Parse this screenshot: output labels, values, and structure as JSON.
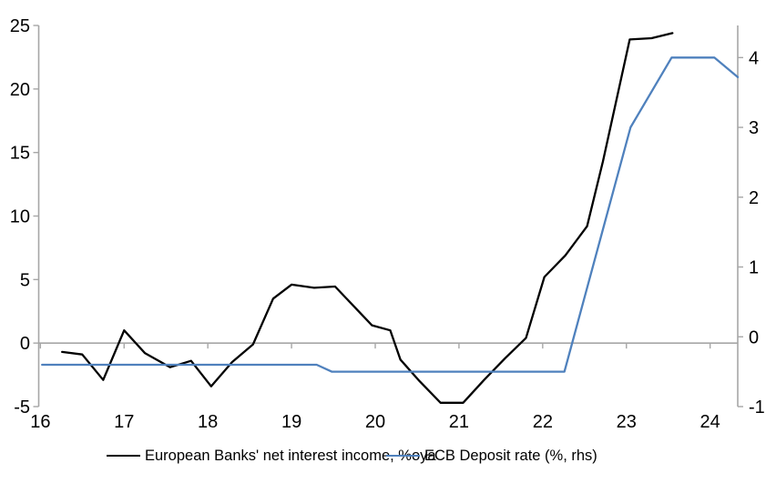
{
  "page": {
    "background": "#ffffff"
  },
  "colors": {
    "nii_line": "#000000",
    "ecb_line": "#4F81BD",
    "axis": "#A6A6A6",
    "zero_gridline": "#A6A6A6",
    "tick_text": "#000000"
  },
  "chart_data": {
    "type": "line",
    "title": "",
    "grid": "zero-line-only",
    "legend_position": "bottom",
    "x_axis": {
      "range": [
        15.98,
        24.33
      ],
      "tick_years": [
        16,
        17,
        18,
        19,
        20,
        21,
        22,
        23,
        24
      ],
      "tick_labels": [
        "16",
        "17",
        "18",
        "19",
        "20",
        "21",
        "22",
        "23",
        "24"
      ]
    },
    "left_axis": {
      "range": [
        -5,
        25
      ],
      "ticks": [
        -5,
        0,
        5,
        10,
        15,
        20,
        25
      ],
      "tick_labels": [
        "-5",
        "0",
        "5",
        "10",
        "15",
        "20",
        "25"
      ]
    },
    "right_axis": {
      "range": [
        -1,
        4.46
      ],
      "ticks": [
        -1,
        0,
        1,
        2,
        3,
        4
      ],
      "tick_labels": [
        "-1",
        "0",
        "1",
        "2",
        "3",
        "4"
      ]
    },
    "series": [
      {
        "name": "European Banks' net interest income, %oya",
        "axis": "left",
        "color": "#000000",
        "points": [
          [
            16.26,
            -0.7
          ],
          [
            16.5,
            -0.9
          ],
          [
            16.75,
            -2.9
          ],
          [
            17.0,
            1.0
          ],
          [
            17.25,
            -0.8
          ],
          [
            17.55,
            -1.9
          ],
          [
            17.8,
            -1.4
          ],
          [
            18.04,
            -3.4
          ],
          [
            18.29,
            -1.5
          ],
          [
            18.54,
            -0.1
          ],
          [
            18.78,
            3.5
          ],
          [
            19.0,
            4.6
          ],
          [
            19.27,
            4.35
          ],
          [
            19.52,
            4.45
          ],
          [
            19.96,
            1.4
          ],
          [
            20.18,
            1.0
          ],
          [
            20.3,
            -1.3
          ],
          [
            20.53,
            -3.0
          ],
          [
            20.78,
            -4.7
          ],
          [
            21.05,
            -4.7
          ],
          [
            21.3,
            -2.9
          ],
          [
            21.55,
            -1.2
          ],
          [
            21.8,
            0.4
          ],
          [
            22.02,
            5.2
          ],
          [
            22.27,
            6.9
          ],
          [
            22.53,
            9.2
          ],
          [
            22.72,
            14.3
          ],
          [
            23.04,
            23.9
          ],
          [
            23.3,
            24.0
          ],
          [
            23.55,
            24.4
          ]
        ]
      },
      {
        "name": "ECB Deposit rate (%, rhs)",
        "axis": "right",
        "color": "#4F81BD",
        "points": [
          [
            16.02,
            -0.4
          ],
          [
            19.3,
            -0.4
          ],
          [
            19.48,
            -0.5
          ],
          [
            22.26,
            -0.5
          ],
          [
            23.05,
            3.0
          ],
          [
            23.54,
            4.0
          ],
          [
            24.05,
            4.0
          ],
          [
            24.33,
            3.72
          ]
        ]
      }
    ],
    "legend": [
      {
        "label": "European Banks' net interest income, %oya",
        "color": "#000000"
      },
      {
        "label": "ECB Deposit rate (%, rhs)",
        "color": "#4F81BD"
      }
    ]
  }
}
